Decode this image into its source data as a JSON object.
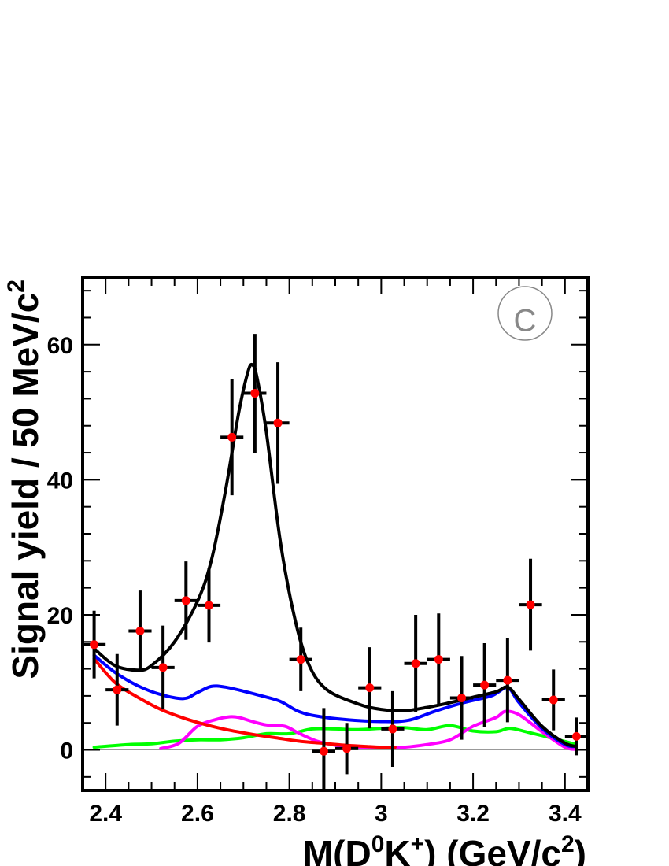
{
  "chart_data": {
    "type": "scatter",
    "title": "",
    "panel_label": "C",
    "xlabel_parts": {
      "a": "M(D",
      "b": "0",
      "c": "K",
      "d": "+",
      "e": ") (GeV/c",
      "f": "2",
      "g": ")"
    },
    "ylabel_parts": {
      "a": "Signal yield / 50 MeV/c",
      "b": "2"
    },
    "xlim": [
      2.35,
      3.45
    ],
    "ylim": [
      -6,
      70
    ],
    "xticks": [
      2.4,
      2.6,
      2.8,
      3.0,
      3.2,
      3.4
    ],
    "xtick_labels": [
      "2.4",
      "2.6",
      "2.8",
      "3",
      "3.2",
      "3.4"
    ],
    "yticks": [
      0,
      20,
      40,
      60
    ],
    "ytick_labels": [
      "0",
      "20",
      "40",
      "60"
    ],
    "bin_halfwidth": 0.025,
    "data_points": {
      "x": [
        2.375,
        2.425,
        2.475,
        2.525,
        2.575,
        2.625,
        2.675,
        2.725,
        2.775,
        2.825,
        2.875,
        2.925,
        2.975,
        3.025,
        3.075,
        3.125,
        3.175,
        3.225,
        3.275,
        3.325,
        3.375,
        3.425
      ],
      "y": [
        15.6,
        8.9,
        17.6,
        12.2,
        22.1,
        21.4,
        46.3,
        52.8,
        48.4,
        13.4,
        -0.2,
        0.2,
        9.2,
        3.1,
        12.8,
        13.4,
        7.7,
        9.6,
        10.3,
        21.5,
        7.4,
        2.0
      ],
      "yerr": [
        5.0,
        5.3,
        6.0,
        6.2,
        5.8,
        5.5,
        8.6,
        8.8,
        9.0,
        4.7,
        6.4,
        3.8,
        6.0,
        5.6,
        7.2,
        6.8,
        6.2,
        6.2,
        6.2,
        6.8,
        4.5,
        2.8
      ],
      "marker_color": "#ff0000"
    },
    "series": [
      {
        "color": "#000000",
        "x": [
          2.375,
          2.42,
          2.47,
          2.5,
          2.55,
          2.6,
          2.63,
          2.66,
          2.69,
          2.71,
          2.72,
          2.73,
          2.75,
          2.78,
          2.81,
          2.84,
          2.88,
          2.95,
          3.0,
          3.05,
          3.1,
          3.15,
          3.2,
          3.25,
          3.275,
          3.3,
          3.35,
          3.4,
          3.425
        ],
        "y": [
          15.0,
          12.5,
          11.8,
          12.5,
          16.0,
          22.0,
          28.0,
          38.0,
          50.0,
          56.0,
          57.0,
          55.0,
          47.0,
          31.0,
          20.0,
          13.0,
          9.0,
          6.8,
          6.0,
          5.8,
          6.3,
          7.0,
          7.8,
          8.6,
          9.3,
          7.5,
          3.5,
          1.0,
          0.5
        ]
      },
      {
        "color": "#0000ff",
        "x": [
          2.375,
          2.42,
          2.47,
          2.52,
          2.57,
          2.6,
          2.63,
          2.66,
          2.7,
          2.74,
          2.78,
          2.82,
          2.86,
          2.92,
          3.0,
          3.06,
          3.12,
          3.18,
          3.24,
          3.275,
          3.3,
          3.35,
          3.4,
          3.425
        ],
        "y": [
          14.0,
          11.5,
          9.5,
          8.2,
          7.6,
          8.5,
          9.4,
          9.3,
          8.7,
          8.0,
          7.2,
          5.7,
          5.0,
          4.5,
          4.2,
          4.4,
          5.8,
          7.0,
          8.0,
          9.2,
          7.0,
          3.2,
          0.8,
          0.5
        ]
      },
      {
        "color": "#ff0000",
        "x": [
          2.375,
          2.42,
          2.47,
          2.52,
          2.57,
          2.62,
          2.67,
          2.72,
          2.77,
          2.82,
          2.87,
          2.92,
          2.97,
          3.0,
          3.03
        ],
        "y": [
          13.5,
          10.0,
          7.8,
          6.0,
          4.7,
          3.7,
          2.9,
          2.3,
          1.8,
          1.3,
          1.0,
          0.7,
          0.5,
          0.4,
          0.4
        ]
      },
      {
        "color": "#ff00ff",
        "x": [
          2.52,
          2.56,
          2.6,
          2.64,
          2.67,
          2.69,
          2.72,
          2.75,
          2.79,
          2.82,
          2.86,
          2.9,
          2.95,
          3.0,
          3.05,
          3.1,
          3.15,
          3.2,
          3.25,
          3.27,
          3.3,
          3.35,
          3.4,
          3.425
        ],
        "y": [
          0.2,
          1.0,
          3.5,
          4.5,
          4.9,
          4.8,
          4.2,
          3.7,
          3.5,
          2.5,
          1.3,
          0.7,
          0.4,
          0.3,
          0.4,
          0.8,
          1.5,
          3.5,
          4.8,
          5.7,
          5.2,
          2.7,
          0.4,
          0.1
        ]
      },
      {
        "color": "#00ff00",
        "x": [
          2.375,
          2.45,
          2.5,
          2.55,
          2.6,
          2.65,
          2.7,
          2.75,
          2.8,
          2.85,
          2.9,
          2.95,
          3.0,
          3.05,
          3.1,
          3.15,
          3.2,
          3.25,
          3.28,
          3.32,
          3.38,
          3.425
        ],
        "y": [
          0.4,
          0.8,
          0.9,
          1.3,
          1.5,
          1.5,
          1.8,
          2.4,
          2.4,
          3.1,
          3.1,
          3.0,
          3.2,
          3.3,
          3.0,
          3.6,
          2.8,
          2.7,
          3.2,
          2.6,
          1.6,
          0.8
        ]
      }
    ],
    "grid": false,
    "legend": "none"
  }
}
